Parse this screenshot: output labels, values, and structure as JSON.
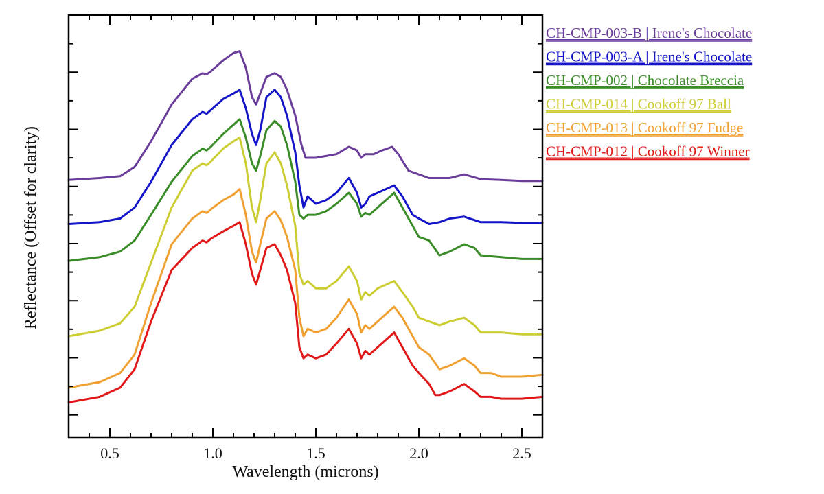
{
  "chart_data": {
    "type": "line",
    "xlabel": "Wavelength (microns)",
    "ylabel": "Reflectance (Offset for clarity)",
    "xlim": [
      0.3,
      2.6
    ],
    "ylim": [
      0,
      1
    ],
    "xticks": [
      "0.5",
      "1.0",
      "1.5",
      "2.0",
      "2.5"
    ],
    "xtick_values": [
      0.5,
      1.0,
      1.5,
      2.0,
      2.5
    ],
    "legend_position": "outside-top-right",
    "series": [
      {
        "name": "CH-CMP-003-B | Irene's Chocolate",
        "color": "#6a3d9a",
        "x": [
          0.3,
          0.45,
          0.55,
          0.62,
          0.7,
          0.8,
          0.9,
          0.95,
          0.97,
          0.99,
          1.05,
          1.1,
          1.13,
          1.16,
          1.19,
          1.21,
          1.23,
          1.26,
          1.3,
          1.33,
          1.36,
          1.4,
          1.43,
          1.45,
          1.5,
          1.55,
          1.6,
          1.66,
          1.7,
          1.72,
          1.74,
          1.78,
          1.82,
          1.87,
          1.9,
          1.95,
          2.0,
          2.05,
          2.1,
          2.15,
          2.22,
          2.3,
          2.4,
          2.5,
          2.6
        ],
        "y": [
          0.675,
          0.68,
          0.685,
          0.71,
          0.78,
          0.88,
          0.95,
          0.965,
          0.962,
          0.97,
          1.0,
          1.02,
          1.025,
          0.98,
          0.9,
          0.88,
          0.91,
          0.955,
          0.965,
          0.955,
          0.92,
          0.85,
          0.77,
          0.735,
          0.735,
          0.74,
          0.745,
          0.765,
          0.755,
          0.735,
          0.745,
          0.745,
          0.755,
          0.765,
          0.745,
          0.7,
          0.69,
          0.68,
          0.68,
          0.68,
          0.69,
          0.677,
          0.675,
          0.672,
          0.672
        ]
      },
      {
        "name": "CH-CMP-003-A | Irene's Chocolate",
        "color": "#1414c8",
        "x": [
          0.3,
          0.45,
          0.55,
          0.62,
          0.7,
          0.8,
          0.9,
          0.95,
          0.97,
          0.99,
          1.05,
          1.1,
          1.13,
          1.16,
          1.19,
          1.21,
          1.23,
          1.26,
          1.3,
          1.33,
          1.36,
          1.4,
          1.42,
          1.44,
          1.46,
          1.5,
          1.55,
          1.6,
          1.66,
          1.7,
          1.72,
          1.74,
          1.76,
          1.8,
          1.84,
          1.88,
          1.92,
          1.97,
          2.0,
          2.05,
          2.1,
          2.15,
          2.22,
          2.3,
          2.4,
          2.5,
          2.6
        ],
        "y": [
          0.555,
          0.56,
          0.57,
          0.6,
          0.67,
          0.77,
          0.84,
          0.86,
          0.855,
          0.865,
          0.895,
          0.91,
          0.92,
          0.87,
          0.8,
          0.77,
          0.81,
          0.9,
          0.92,
          0.9,
          0.85,
          0.75,
          0.66,
          0.6,
          0.63,
          0.61,
          0.62,
          0.64,
          0.68,
          0.64,
          0.6,
          0.61,
          0.63,
          0.64,
          0.65,
          0.66,
          0.63,
          0.58,
          0.57,
          0.555,
          0.56,
          0.57,
          0.575,
          0.56,
          0.56,
          0.558,
          0.558
        ]
      },
      {
        "name": "CH-CMP-002 | Chocolate Breccia",
        "color": "#3a8c28",
        "x": [
          0.3,
          0.45,
          0.55,
          0.62,
          0.7,
          0.8,
          0.9,
          0.95,
          0.97,
          0.99,
          1.05,
          1.1,
          1.13,
          1.16,
          1.19,
          1.21,
          1.23,
          1.26,
          1.3,
          1.33,
          1.36,
          1.4,
          1.42,
          1.44,
          1.46,
          1.5,
          1.55,
          1.6,
          1.66,
          1.7,
          1.72,
          1.74,
          1.76,
          1.8,
          1.84,
          1.88,
          1.92,
          1.97,
          2.0,
          2.05,
          2.1,
          2.15,
          2.22,
          2.27,
          2.3,
          2.4,
          2.5,
          2.6
        ],
        "y": [
          0.455,
          0.465,
          0.48,
          0.51,
          0.58,
          0.67,
          0.74,
          0.76,
          0.755,
          0.765,
          0.8,
          0.825,
          0.84,
          0.79,
          0.72,
          0.7,
          0.74,
          0.81,
          0.835,
          0.82,
          0.77,
          0.67,
          0.58,
          0.57,
          0.58,
          0.58,
          0.59,
          0.61,
          0.64,
          0.61,
          0.575,
          0.585,
          0.58,
          0.6,
          0.62,
          0.64,
          0.6,
          0.55,
          0.52,
          0.51,
          0.47,
          0.48,
          0.5,
          0.49,
          0.47,
          0.465,
          0.46,
          0.46
        ]
      },
      {
        "name": "CH-CMP-014 | Cookoff 97 Ball",
        "color": "#cccc33",
        "x": [
          0.3,
          0.45,
          0.55,
          0.62,
          0.7,
          0.8,
          0.9,
          0.95,
          0.97,
          0.99,
          1.05,
          1.1,
          1.13,
          1.16,
          1.19,
          1.21,
          1.23,
          1.26,
          1.3,
          1.33,
          1.36,
          1.4,
          1.42,
          1.44,
          1.46,
          1.5,
          1.55,
          1.6,
          1.66,
          1.7,
          1.72,
          1.74,
          1.76,
          1.8,
          1.84,
          1.88,
          1.92,
          1.97,
          2.0,
          2.05,
          2.1,
          2.15,
          2.22,
          2.27,
          2.3,
          2.4,
          2.5,
          2.6
        ],
        "y": [
          0.25,
          0.265,
          0.285,
          0.33,
          0.45,
          0.6,
          0.7,
          0.72,
          0.715,
          0.725,
          0.76,
          0.78,
          0.79,
          0.72,
          0.6,
          0.56,
          0.62,
          0.72,
          0.75,
          0.72,
          0.66,
          0.55,
          0.42,
          0.39,
          0.4,
          0.38,
          0.38,
          0.4,
          0.44,
          0.4,
          0.35,
          0.37,
          0.36,
          0.38,
          0.39,
          0.4,
          0.37,
          0.33,
          0.3,
          0.29,
          0.28,
          0.29,
          0.3,
          0.28,
          0.26,
          0.26,
          0.255,
          0.255
        ]
      },
      {
        "name": "CH-CMP-013 | Cookoff 97 Fudge",
        "color": "#f0a030",
        "x": [
          0.3,
          0.45,
          0.55,
          0.62,
          0.7,
          0.8,
          0.9,
          0.95,
          0.97,
          0.99,
          1.05,
          1.1,
          1.13,
          1.16,
          1.19,
          1.21,
          1.23,
          1.26,
          1.3,
          1.33,
          1.36,
          1.4,
          1.42,
          1.44,
          1.46,
          1.5,
          1.55,
          1.6,
          1.66,
          1.7,
          1.72,
          1.74,
          1.76,
          1.8,
          1.84,
          1.88,
          1.92,
          1.97,
          2.0,
          2.05,
          2.1,
          2.15,
          2.22,
          2.27,
          2.3,
          2.35,
          2.4,
          2.5,
          2.6
        ],
        "y": [
          0.11,
          0.125,
          0.15,
          0.2,
          0.34,
          0.5,
          0.57,
          0.59,
          0.585,
          0.595,
          0.62,
          0.635,
          0.65,
          0.58,
          0.48,
          0.45,
          0.5,
          0.57,
          0.59,
          0.565,
          0.52,
          0.43,
          0.3,
          0.25,
          0.27,
          0.26,
          0.27,
          0.3,
          0.35,
          0.31,
          0.26,
          0.28,
          0.27,
          0.29,
          0.31,
          0.33,
          0.3,
          0.25,
          0.22,
          0.2,
          0.16,
          0.17,
          0.19,
          0.17,
          0.15,
          0.15,
          0.14,
          0.14,
          0.145
        ]
      },
      {
        "name": "CH-CMP-012 | Cookoff 97 Winner",
        "color": "#e01818",
        "x": [
          0.3,
          0.45,
          0.55,
          0.62,
          0.7,
          0.8,
          0.9,
          0.95,
          0.97,
          0.99,
          1.05,
          1.1,
          1.13,
          1.16,
          1.19,
          1.21,
          1.23,
          1.26,
          1.3,
          1.33,
          1.36,
          1.4,
          1.42,
          1.44,
          1.46,
          1.5,
          1.55,
          1.6,
          1.66,
          1.7,
          1.72,
          1.74,
          1.76,
          1.8,
          1.84,
          1.88,
          1.92,
          1.97,
          2.0,
          2.05,
          2.08,
          2.1,
          2.15,
          2.22,
          2.27,
          2.3,
          2.35,
          2.4,
          2.5,
          2.6
        ],
        "y": [
          0.07,
          0.085,
          0.11,
          0.16,
          0.29,
          0.43,
          0.49,
          0.51,
          0.505,
          0.515,
          0.535,
          0.55,
          0.56,
          0.5,
          0.42,
          0.39,
          0.43,
          0.49,
          0.5,
          0.47,
          0.43,
          0.34,
          0.22,
          0.19,
          0.2,
          0.19,
          0.2,
          0.23,
          0.27,
          0.23,
          0.19,
          0.21,
          0.2,
          0.22,
          0.24,
          0.26,
          0.22,
          0.17,
          0.15,
          0.12,
          0.09,
          0.09,
          0.1,
          0.12,
          0.1,
          0.085,
          0.085,
          0.08,
          0.08,
          0.085
        ]
      }
    ]
  }
}
